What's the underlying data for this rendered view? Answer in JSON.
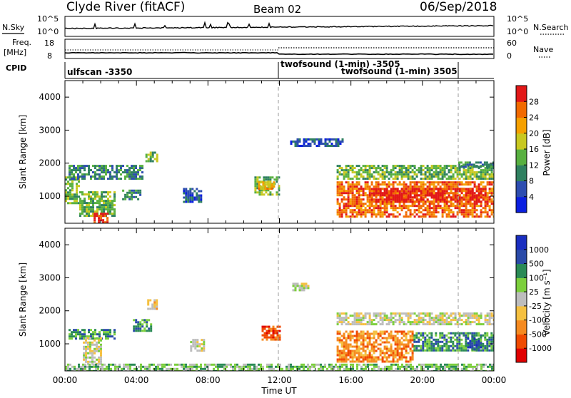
{
  "header": {
    "station": "Clyde River (fitACF)",
    "beam": "Beam 02",
    "date": "06/Sep/2018"
  },
  "noise_panel": {
    "left_label": "N.Sky",
    "right_label": "N.Search",
    "left_ticks": [
      "10^5",
      "10^0"
    ],
    "right_ticks": [
      "10^5",
      "10^0"
    ]
  },
  "freq_panel": {
    "left_label_1": "Freq.",
    "left_label_2": "[MHz]",
    "right_label": "Nave",
    "left_ticks": [
      "18",
      "8"
    ],
    "right_ticks": [
      "60",
      "0"
    ]
  },
  "cpid_panel": {
    "label": "CPID",
    "entries": [
      {
        "text": "ulfscan -3350",
        "start_hour": 0
      },
      {
        "text": "twofsound (1-min) -3505",
        "start_hour": 12
      },
      {
        "text": "twofsound (1-min) 3505",
        "start_hour": 12
      }
    ]
  },
  "colors": {
    "power": [
      "#0b1fe0",
      "#2d4db0",
      "#2f8060",
      "#58b040",
      "#c8c820",
      "#f5a000",
      "#f26a00",
      "#e21818"
    ],
    "velocity": [
      "#e00000",
      "#f04a00",
      "#f58a20",
      "#f5c040",
      "#bdbdbd",
      "#7ccf3c",
      "#2a8a55",
      "#2a4aa8",
      "#1a2ec0"
    ]
  },
  "chart_data": [
    {
      "type": "heatmap",
      "quantity": "Power",
      "ylabel": "Slant Range [km]",
      "x_ticks": [
        "00:00",
        "04:00",
        "08:00",
        "12:00",
        "16:00",
        "20:00",
        "00:00"
      ],
      "x_range_hours": [
        0,
        24
      ],
      "y_ticks": [
        1000,
        2000,
        3000,
        4000
      ],
      "y_range_km": [
        180,
        4500
      ],
      "colorbar": {
        "label": "Power [dB]",
        "ticks": [
          "4",
          "8",
          "12",
          "16",
          "20",
          "24",
          "28"
        ],
        "range": [
          0,
          32
        ]
      },
      "echo_regions": [
        {
          "t0": 0.0,
          "t1": 0.8,
          "r0": 800,
          "r1": 1600,
          "level": 3
        },
        {
          "t0": 0.2,
          "t1": 4.3,
          "r0": 1500,
          "r1": 1950,
          "level": 2
        },
        {
          "t0": 0.8,
          "t1": 2.8,
          "r0": 400,
          "r1": 1150,
          "level": 3
        },
        {
          "t0": 1.6,
          "t1": 2.4,
          "r0": 180,
          "r1": 500,
          "level": 7
        },
        {
          "t0": 3.2,
          "t1": 4.2,
          "r0": 900,
          "r1": 1200,
          "level": 2
        },
        {
          "t0": 4.5,
          "t1": 5.1,
          "r0": 2050,
          "r1": 2350,
          "level": 3
        },
        {
          "t0": 6.6,
          "t1": 7.6,
          "r0": 800,
          "r1": 1250,
          "level": 1
        },
        {
          "t0": 10.6,
          "t1": 12.0,
          "r0": 1050,
          "r1": 1600,
          "level": 3
        },
        {
          "t0": 10.8,
          "t1": 11.7,
          "r0": 1200,
          "r1": 1450,
          "level": 5
        },
        {
          "t0": 12.6,
          "t1": 15.5,
          "r0": 2500,
          "r1": 2750,
          "level": 1
        },
        {
          "t0": 15.2,
          "t1": 24.0,
          "r0": 1550,
          "r1": 1950,
          "level": 3
        },
        {
          "t0": 15.2,
          "t1": 24.0,
          "r0": 400,
          "r1": 1450,
          "level": 6
        },
        {
          "t0": 17.0,
          "t1": 23.5,
          "r0": 800,
          "r1": 1250,
          "level": 7
        },
        {
          "t0": 22.0,
          "t1": 24.0,
          "r0": 1900,
          "r1": 2050,
          "level": 2
        }
      ]
    },
    {
      "type": "heatmap",
      "quantity": "Velocity",
      "ylabel": "Slant Range [km]",
      "xlabel": "Time UT",
      "x_ticks": [
        "00:00",
        "04:00",
        "08:00",
        "12:00",
        "16:00",
        "20:00",
        "00:00"
      ],
      "x_range_hours": [
        0,
        24
      ],
      "y_ticks": [
        1000,
        2000,
        3000,
        4000
      ],
      "y_range_km": [
        180,
        4500
      ],
      "colorbar": {
        "label": "Velocity [m s⁻¹]",
        "ticks": [
          "-1000",
          "-500",
          "-100",
          "-25",
          "25",
          "100",
          "500",
          "1000"
        ],
        "range": [
          -1500,
          1500
        ]
      },
      "echo_regions": [
        {
          "t0": 0.2,
          "t1": 2.8,
          "r0": 1150,
          "r1": 1450,
          "level": 6
        },
        {
          "t0": 1.0,
          "t1": 2.0,
          "r0": 400,
          "r1": 1200,
          "level": 4
        },
        {
          "t0": 3.8,
          "t1": 4.8,
          "r0": 1400,
          "r1": 1750,
          "level": 6
        },
        {
          "t0": 4.6,
          "t1": 5.1,
          "r0": 2050,
          "r1": 2350,
          "level": 3
        },
        {
          "t0": 7.0,
          "t1": 7.8,
          "r0": 800,
          "r1": 1150,
          "level": 4
        },
        {
          "t0": 11.0,
          "t1": 12.0,
          "r0": 1150,
          "r1": 1550,
          "level": 1
        },
        {
          "t0": 12.6,
          "t1": 13.6,
          "r0": 2600,
          "r1": 2850,
          "level": 4
        },
        {
          "t0": 15.2,
          "t1": 24.0,
          "r0": 1600,
          "r1": 1950,
          "level": 4
        },
        {
          "t0": 15.2,
          "t1": 19.5,
          "r0": 450,
          "r1": 1400,
          "level": 2
        },
        {
          "t0": 19.5,
          "t1": 24.0,
          "r0": 800,
          "r1": 1350,
          "level": 6
        },
        {
          "t0": 22.5,
          "t1": 23.3,
          "r0": 800,
          "r1": 1250,
          "level": 7
        },
        {
          "t0": 0.0,
          "t1": 24.0,
          "r0": 180,
          "r1": 400,
          "level": 5
        }
      ]
    }
  ]
}
